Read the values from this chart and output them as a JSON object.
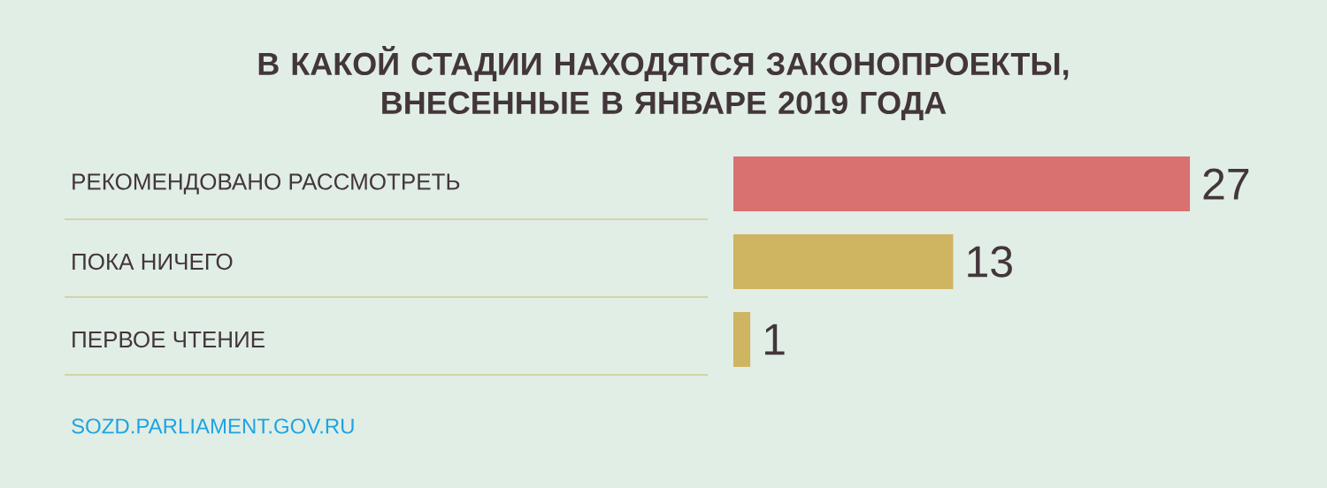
{
  "chart_data": {
    "type": "bar",
    "orientation": "horizontal",
    "title": "В КАКОЙ СТАДИИ НАХОДЯТСЯ ЗАКОНОПРОЕКТЫ, ВНЕСЕННЫЕ В ЯНВАРЕ 2019 ГОДА",
    "categories": [
      "РЕКОМЕНДОВАНО РАССМОТРЕТЬ",
      "ПОКА НИЧЕГО",
      "ПЕРВОЕ ЧТЕНИЕ"
    ],
    "values": [
      27,
      13,
      1
    ],
    "colors": [
      "#d87170",
      "#cfb461",
      "#cfb461"
    ],
    "data_labels": true,
    "annotations": [
      "SOZD.PARLIAMENT.GOV.RU"
    ]
  }
}
